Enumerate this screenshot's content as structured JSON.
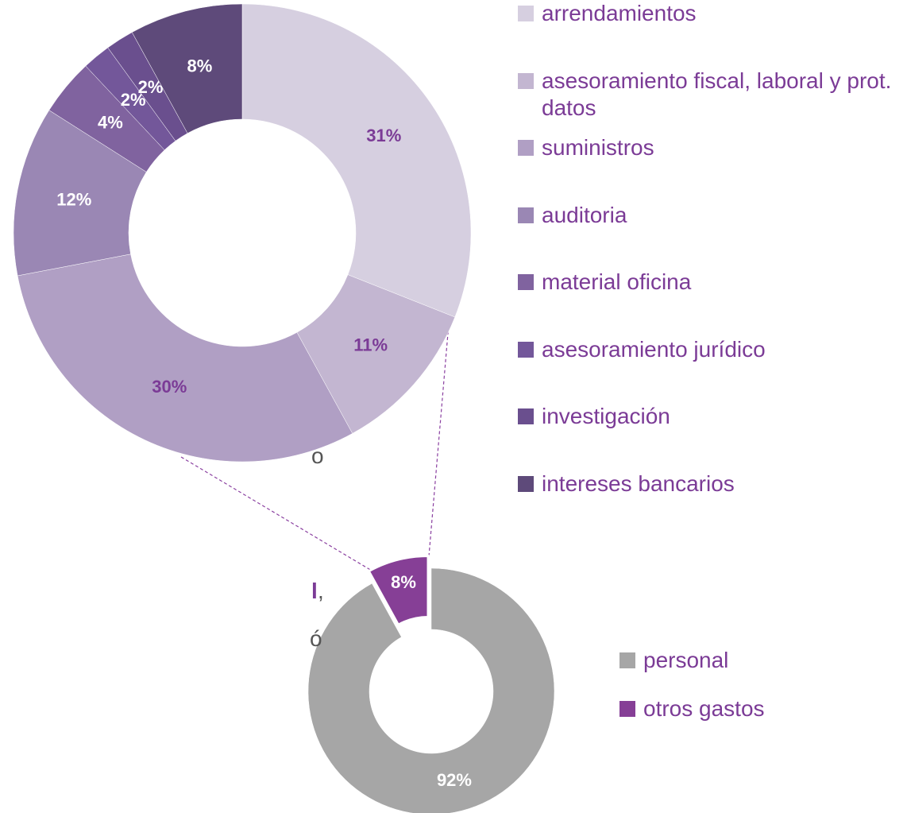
{
  "chart_data": [
    {
      "type": "donut",
      "categories": [
        "arrendamientos",
        "asesoramiento fiscal, laboral y prot. datos",
        "suministros",
        "auditoria",
        "material oficina",
        "asesoramiento jurídico",
        "investigación",
        "intereses bancarios"
      ],
      "values": [
        31,
        11,
        30,
        12,
        4,
        2,
        2,
        8
      ],
      "colors": [
        "#d6cfe0",
        "#c3b6d1",
        "#b09fc4",
        "#9a87b4",
        "#80639f",
        "#73579a",
        "#6a4f8e",
        "#5e4a7a"
      ],
      "label_colors": [
        "#7b3b96",
        "#7b3b96",
        "#7b3b96",
        "#ffffff",
        "#ffffff",
        "#ffffff",
        "#ffffff",
        "#ffffff"
      ],
      "legend": "right"
    },
    {
      "type": "donut",
      "categories": [
        "personal",
        "otros gastos"
      ],
      "values": [
        92,
        8
      ],
      "colors": [
        "#a6a6a6",
        "#863f96"
      ],
      "label_colors": [
        "#ffffff",
        "#ffffff"
      ],
      "exploded": [
        false,
        true
      ],
      "legend": "right"
    }
  ],
  "text_fragments": [
    "o",
    "l",
    ",",
    "ó"
  ]
}
